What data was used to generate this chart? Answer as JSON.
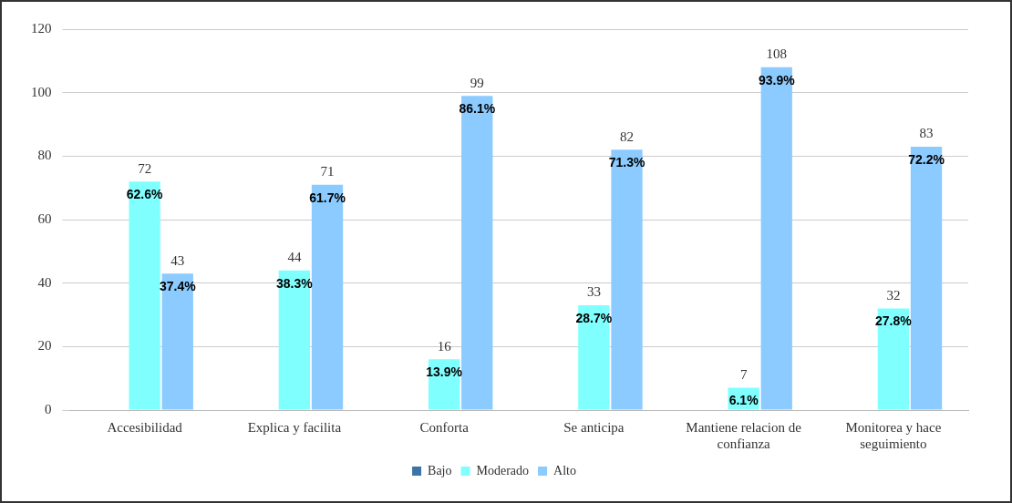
{
  "chart_data": {
    "type": "bar",
    "categories": [
      "Accesibilidad",
      "Explica y facilita",
      "Conforta",
      "Se anticipa",
      "Mantiene relacion de confianza",
      "Monitorea y hace seguimiento"
    ],
    "series": [
      {
        "name": "Bajo",
        "color": "#3b74a6",
        "values": [
          0,
          0,
          0,
          0,
          0,
          0
        ],
        "value_labels": [
          null,
          null,
          null,
          null,
          null,
          null
        ]
      },
      {
        "name": "Moderado",
        "color": "#80ffff",
        "values": [
          72,
          44,
          16,
          33,
          7,
          32
        ],
        "value_labels": [
          "72",
          "44",
          "16",
          "33",
          "7",
          "32"
        ]
      },
      {
        "name": "Alto",
        "color": "#8ccbff",
        "values": [
          43,
          71,
          99,
          82,
          108,
          83
        ],
        "value_labels": [
          "43",
          "71",
          "99",
          "82",
          "108",
          "83"
        ]
      }
    ],
    "annotations": [
      "62.6%",
      "37.4%",
      "38.3%",
      "61.7%",
      "13.9%",
      "86.1%",
      "28.7%",
      "71.3%",
      "6.1%",
      "93.9%",
      "27.8%",
      "72.2%"
    ],
    "ylim": [
      0,
      120
    ],
    "yticks": [
      0,
      20,
      40,
      60,
      80,
      100,
      120
    ],
    "grid": "y",
    "legend": "bottom"
  }
}
